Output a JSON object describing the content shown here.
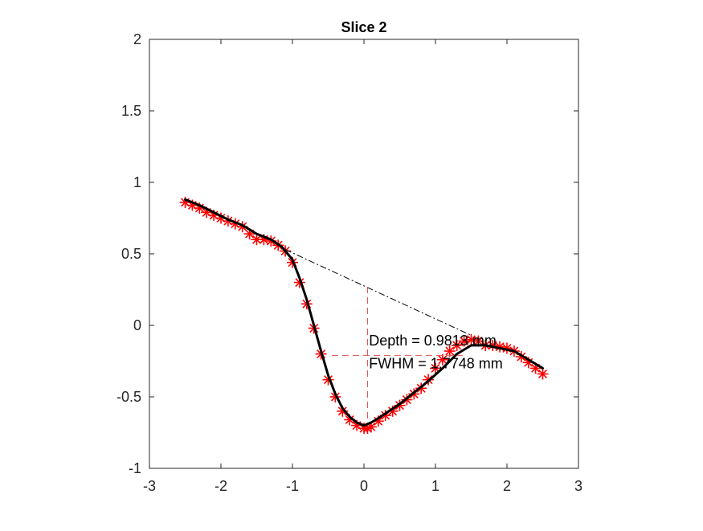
{
  "chart_data": {
    "type": "line",
    "title": "Slice 2",
    "xlabel": "",
    "ylabel": "",
    "xlim": [
      -3,
      3
    ],
    "ylim": [
      -1,
      2
    ],
    "xticks": [
      -3,
      -2,
      -1,
      0,
      1,
      2,
      3
    ],
    "yticks": [
      -1,
      -0.5,
      0,
      0.5,
      1,
      1.5,
      2
    ],
    "xtick_labels": [
      "-3",
      "-2",
      "-1",
      "0",
      "1",
      "2",
      "3"
    ],
    "ytick_labels": [
      "-1",
      "-0.5",
      "0",
      "0.5",
      "1",
      "1.5",
      "2"
    ],
    "grid": false,
    "series": [
      {
        "marker": "asterisk",
        "color": "#ff0000",
        "x": [
          -2.5,
          -2.4,
          -2.3,
          -2.2,
          -2.1,
          -2.0,
          -1.9,
          -1.8,
          -1.7,
          -1.6,
          -1.5,
          -1.4,
          -1.3,
          -1.2,
          -1.1,
          -1.0,
          -0.9,
          -0.8,
          -0.7,
          -0.6,
          -0.5,
          -0.4,
          -0.3,
          -0.2,
          -0.1,
          0.0,
          0.05,
          0.1,
          0.2,
          0.3,
          0.4,
          0.5,
          0.6,
          0.7,
          0.8,
          0.9,
          1.0,
          1.1,
          1.2,
          1.3,
          1.4,
          1.5,
          1.6,
          1.7,
          1.8,
          1.9,
          2.0,
          2.1,
          2.2,
          2.3,
          2.4,
          2.5
        ],
        "y": [
          0.86,
          0.84,
          0.82,
          0.79,
          0.77,
          0.75,
          0.73,
          0.71,
          0.69,
          0.64,
          0.6,
          0.6,
          0.59,
          0.56,
          0.52,
          0.44,
          0.3,
          0.15,
          -0.02,
          -0.2,
          -0.38,
          -0.5,
          -0.6,
          -0.66,
          -0.7,
          -0.72,
          -0.72,
          -0.71,
          -0.67,
          -0.63,
          -0.6,
          -0.56,
          -0.52,
          -0.48,
          -0.44,
          -0.38,
          -0.3,
          -0.24,
          -0.18,
          -0.14,
          -0.11,
          -0.1,
          -0.11,
          -0.14,
          -0.14,
          -0.15,
          -0.16,
          -0.18,
          -0.22,
          -0.26,
          -0.3,
          -0.34
        ]
      },
      {
        "color": "#000000",
        "x": [
          -2.5,
          -2.3,
          -2.1,
          -1.9,
          -1.7,
          -1.5,
          -1.3,
          -1.15,
          -1.0,
          -0.9,
          -0.8,
          -0.7,
          -0.6,
          -0.5,
          -0.4,
          -0.3,
          -0.2,
          -0.1,
          0.0,
          0.1,
          0.2,
          0.35,
          0.5,
          0.7,
          0.9,
          1.1,
          1.3,
          1.5,
          1.7,
          1.9,
          2.1,
          2.3,
          2.5
        ],
        "y": [
          0.88,
          0.84,
          0.79,
          0.74,
          0.7,
          0.64,
          0.6,
          0.55,
          0.46,
          0.33,
          0.18,
          0.0,
          -0.18,
          -0.35,
          -0.48,
          -0.58,
          -0.64,
          -0.68,
          -0.7,
          -0.68,
          -0.65,
          -0.6,
          -0.55,
          -0.47,
          -0.39,
          -0.3,
          -0.2,
          -0.14,
          -0.14,
          -0.16,
          -0.18,
          -0.24,
          -0.3
        ]
      },
      {
        "color": "#000000",
        "style": "dash-dot",
        "x": [
          -1.1,
          1.5
        ],
        "y": [
          0.53,
          -0.07
        ]
      },
      {
        "color": "#e05050",
        "style": "dashed",
        "x": [
          0.05,
          0.05
        ],
        "y": [
          0.27,
          -0.67
        ]
      },
      {
        "color": "#e05050",
        "style": "dashed",
        "x": [
          -0.45,
          1.38
        ],
        "y": [
          -0.21,
          -0.21
        ]
      }
    ],
    "annotations": [
      {
        "text": "Depth = 0.9813 mm",
        "x": 0.07,
        "y": -0.14
      },
      {
        "text": "FWHM = 1.7748 mm",
        "x": 0.07,
        "y": -0.3
      }
    ]
  }
}
